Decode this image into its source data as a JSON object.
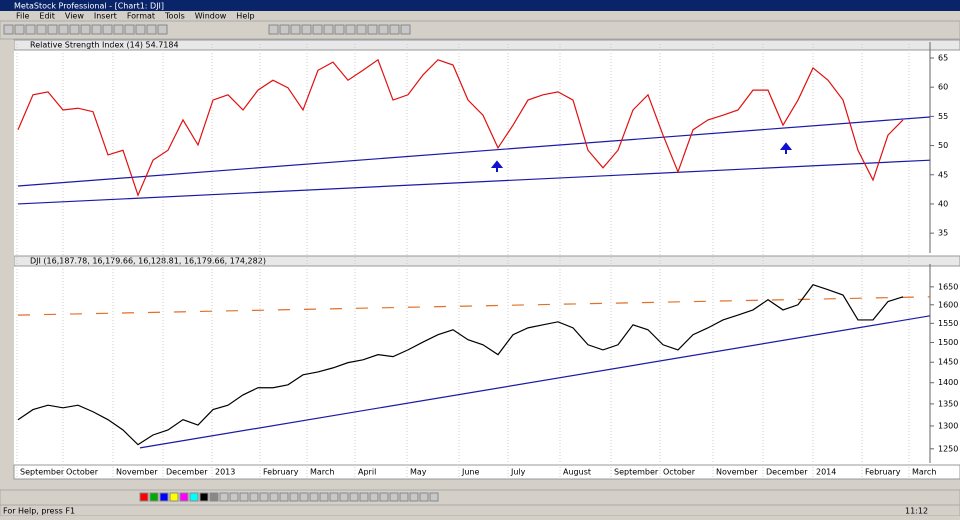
{
  "window": {
    "title": "MetaStock Professional - [Chart1: DJI]",
    "menu": [
      "File",
      "Edit",
      "View",
      "Insert",
      "Format",
      "Tools",
      "Window",
      "Help"
    ],
    "status": "For Help, press F1",
    "status_right": "11:12"
  },
  "x_axis": {
    "labels": [
      "September",
      "October",
      "November",
      "December",
      "2013",
      "February",
      "March",
      "April",
      "May",
      "June",
      "July",
      "August",
      "September",
      "October",
      "November",
      "December",
      "2014",
      "February",
      "March"
    ]
  },
  "chart_data": [
    {
      "type": "line",
      "title": "Relative Strength Index (14) 54.7184",
      "color": "#e01010",
      "ylim": [
        31.6,
        67.4
      ],
      "yticks": [
        65,
        60,
        55,
        50,
        45,
        40,
        35
      ],
      "log_scale": false,
      "series": [
        {
          "color": "#e01010",
          "values": [
            52.7,
            58.7,
            59.2,
            56.1,
            56.4,
            55.8,
            48.4,
            49.2,
            41.5,
            47.5,
            49.2,
            54.4,
            50.1,
            57.8,
            58.7,
            56.1,
            59.5,
            61.2,
            59.9,
            56.1,
            62.9,
            64.3,
            61.2,
            62.9,
            64.7,
            57.8,
            58.7,
            62.1,
            64.7,
            63.8,
            57.8,
            55.2,
            49.6,
            53.5,
            57.8,
            58.7,
            59.2,
            57.8,
            49.2,
            46.2,
            49.2,
            56.1,
            58.7,
            51.8,
            45.5,
            52.7,
            54.4,
            55.2,
            56.1,
            59.5,
            59.5,
            53.5,
            57.8,
            63.3,
            61.2,
            57.8,
            49.2,
            44.1,
            51.8,
            54.4
          ]
        }
      ],
      "trend_lines": [
        {
          "color": "#1a1aa8",
          "x": [
            0,
            60.8
          ],
          "values": [
            43.08,
            54.9
          ]
        },
        {
          "color": "#1a1aa8",
          "x": [
            0,
            60.8
          ],
          "values": [
            40.0,
            47.5
          ]
        }
      ]
    },
    {
      "type": "line",
      "title": "DJI (16,187.78, 16,179.66, 16,128.81, 16,179.66, 174,282)",
      "color": "#000000",
      "ylim": [
        1220,
        1710
      ],
      "yticks": [
        1650,
        1600,
        1550,
        1500,
        1450,
        1400,
        1350,
        1300,
        1250
      ],
      "log_scale": true,
      "series": [
        {
          "color": "#000000",
          "values": [
            1314,
            1337,
            1347,
            1341,
            1347,
            1332,
            1314,
            1291,
            1259,
            1280,
            1291,
            1314,
            1302,
            1337,
            1347,
            1371,
            1388,
            1388,
            1395,
            1419,
            1426,
            1436,
            1449,
            1456,
            1469,
            1464,
            1481,
            1501,
            1520,
            1533,
            1507,
            1494,
            1469,
            1520,
            1538,
            1546,
            1554,
            1538,
            1494,
            1481,
            1494,
            1546,
            1533,
            1494,
            1481,
            1520,
            1538,
            1559,
            1572,
            1586,
            1614,
            1586,
            1600,
            1656,
            1642,
            1627,
            1559,
            1559,
            1609,
            1622
          ]
        }
      ],
      "trend_lines": [
        {
          "color": "#1a1aa8",
          "x": [
            8.13,
            60.8
          ],
          "values": [
            1252,
            1570
          ]
        },
        {
          "color": "#e0702a",
          "x": [
            0,
            60.8
          ],
          "values": [
            1572,
            1622
          ],
          "dashed": true
        }
      ]
    }
  ]
}
